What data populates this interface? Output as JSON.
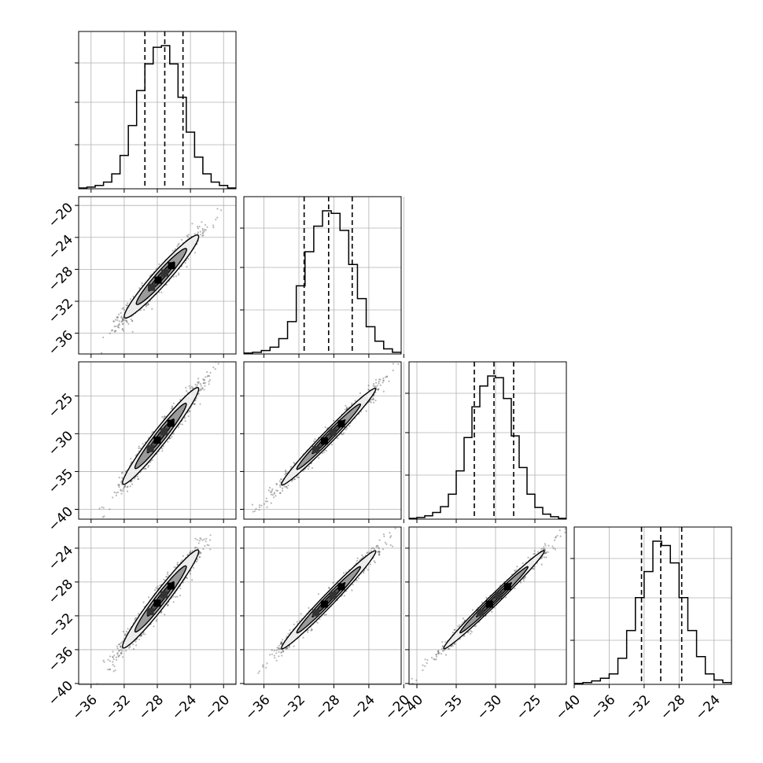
{
  "chart_data": {
    "type": "corner",
    "parameters": 4,
    "grid": true,
    "histograms": [
      {
        "dim": 0,
        "range": [
          -37.5,
          -18.5
        ],
        "bin_width": 1.0,
        "quantiles": [
          -29.5,
          -27.1,
          -24.9
        ],
        "counts": [
          1,
          2,
          4,
          8,
          18,
          40,
          76,
          118,
          150,
          170,
          172,
          150,
          110,
          68,
          38,
          18,
          8,
          4,
          1
        ]
      },
      {
        "dim": 1,
        "range": [
          -38.3,
          -20.3
        ],
        "bin_width": 1.0,
        "quantiles": [
          -31.4,
          -28.6,
          -25.9
        ],
        "counts": [
          1,
          2,
          4,
          8,
          18,
          38,
          80,
          120,
          150,
          168,
          165,
          145,
          105,
          65,
          32,
          15,
          6,
          2
        ]
      },
      {
        "dim": 2,
        "range": [
          -41.0,
          -21.0
        ],
        "bin_width": 1.0,
        "quantiles": [
          -32.7,
          -30.2,
          -27.7
        ],
        "counts": [
          1,
          2,
          4,
          8,
          15,
          30,
          58,
          98,
          135,
          160,
          172,
          170,
          145,
          100,
          62,
          30,
          14,
          6,
          3,
          1
        ]
      },
      {
        "dim": 3,
        "range": [
          -40.0,
          -22.0
        ],
        "bin_width": 1.0,
        "quantiles": [
          -32.3,
          -30.1,
          -27.7
        ],
        "counts": [
          1,
          2,
          4,
          7,
          12,
          30,
          62,
          100,
          130,
          165,
          160,
          140,
          100,
          62,
          32,
          12,
          5,
          2
        ]
      }
    ],
    "pairs": [
      {
        "row": 1,
        "col": 0,
        "center": [
          -27.5,
          -28.9
        ],
        "sd": [
          2.25,
          2.6
        ],
        "corr": 0.96
      },
      {
        "row": 2,
        "col": 0,
        "center": [
          -27.6,
          -30.3
        ],
        "sd": [
          2.3,
          3.2
        ],
        "corr": 0.97
      },
      {
        "row": 3,
        "col": 0,
        "center": [
          -27.6,
          -30.0
        ],
        "sd": [
          2.3,
          2.9
        ],
        "corr": 0.97
      },
      {
        "row": 2,
        "col": 1,
        "center": [
          -28.6,
          -30.4
        ],
        "sd": [
          2.7,
          3.2
        ],
        "corr": 0.985
      },
      {
        "row": 3,
        "col": 1,
        "center": [
          -28.6,
          -30.1
        ],
        "sd": [
          2.7,
          2.9
        ],
        "corr": 0.985
      },
      {
        "row": 3,
        "col": 2,
        "center": [
          -30.2,
          -30.1
        ],
        "sd": [
          3.2,
          2.9
        ],
        "corr": 0.99
      }
    ],
    "axes": {
      "col_ranges": [
        [
          -37.5,
          -18.5
        ],
        [
          -38.3,
          -20.3
        ],
        [
          -41.0,
          -21.0
        ],
        [
          -40.0,
          -22.0
        ]
      ],
      "row_ranges": [
        null,
        [
          -38.6,
          -18.9
        ],
        [
          -41.3,
          -20.5
        ],
        [
          -40.1,
          -21.5
        ]
      ],
      "col_ticks": [
        [
          -36,
          -32,
          -28,
          -24,
          -20
        ],
        [
          -36,
          -32,
          -28,
          -24,
          -20
        ],
        [
          -40,
          -35,
          -30,
          -25
        ],
        [
          -40,
          -36,
          -32,
          -28,
          -24
        ]
      ],
      "row_ticks": [
        null,
        [
          -20,
          -24,
          -28,
          -32,
          -36
        ],
        [
          -25,
          -30,
          -35,
          -40
        ],
        [
          -24,
          -28,
          -32,
          -36,
          -40
        ]
      ],
      "col_tick_labels": [
        [
          "−36",
          "−32",
          "−28",
          "−24",
          "−20"
        ],
        [
          "−36",
          "−32",
          "−28",
          "−24",
          "−20"
        ],
        [
          "−40",
          "−35",
          "−30",
          "−25"
        ],
        [
          "−40",
          "−36",
          "−32",
          "−28",
          "−24"
        ]
      ],
      "row_tick_labels": [
        null,
        [
          "−20",
          "−24",
          "−28",
          "−32",
          "−36"
        ],
        [
          "−25",
          "−30",
          "−35",
          "−40"
        ],
        [
          "−24",
          "−28",
          "−32",
          "−36",
          "−40"
        ]
      ]
    },
    "colors": {
      "line": "#000000",
      "grid": "#b0b0b0",
      "scatter": "#333333",
      "fill_light": "#ececec",
      "fill_mid": "#9a9a9a",
      "fill_dark": "#555555"
    }
  }
}
